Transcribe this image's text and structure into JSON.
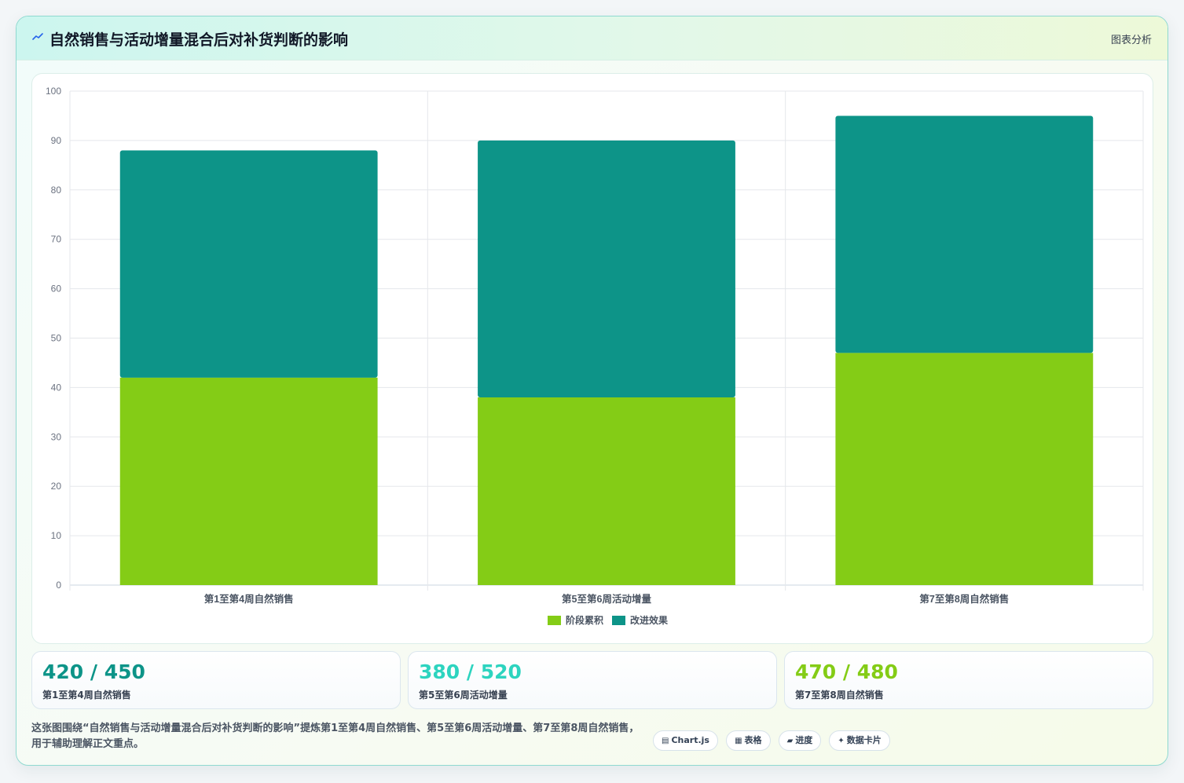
{
  "header": {
    "title": "自然销售与活动增量混合后对补货判断的影响",
    "action_label": "图表分析"
  },
  "colors": {
    "series_stage": "#84cc16",
    "series_effect": "#0d9488",
    "stat_1": "#0d9488",
    "stat_2": "#2dd4bf",
    "stat_3": "#84cc16"
  },
  "chart_data": {
    "type": "bar",
    "stacked": true,
    "categories": [
      "第1至第4周自然销售",
      "第5至第6周活动增量",
      "第7至第8周自然销售"
    ],
    "series": [
      {
        "name": "阶段累积",
        "values": [
          42,
          38,
          47
        ],
        "color": "#84cc16"
      },
      {
        "name": "改进效果",
        "values": [
          46,
          52,
          48
        ],
        "color": "#0d9488"
      }
    ],
    "ylim": [
      0,
      100
    ],
    "yticks": [
      0,
      10,
      20,
      30,
      40,
      50,
      60,
      70,
      80,
      90,
      100
    ],
    "grid": true,
    "legend": "bottom"
  },
  "stats": [
    {
      "value": "420 / 450",
      "label": "第1至第4周自然销售"
    },
    {
      "value": "380 / 520",
      "label": "第5至第6周活动增量"
    },
    {
      "value": "470 / 480",
      "label": "第7至第8周自然销售"
    }
  ],
  "footer": {
    "description": "这张图围绕“自然销售与活动增量混合后对补货判断的影响”提炼第1至第4周自然销售、第5至第6周活动增量、第7至第8周自然销售，用于辅助理解正文重点。",
    "chips": [
      {
        "icon": "▤",
        "label": "Chart.js"
      },
      {
        "icon": "▦",
        "label": "表格"
      },
      {
        "icon": "▰",
        "label": "进度"
      },
      {
        "icon": "✦",
        "label": "数据卡片"
      }
    ]
  }
}
